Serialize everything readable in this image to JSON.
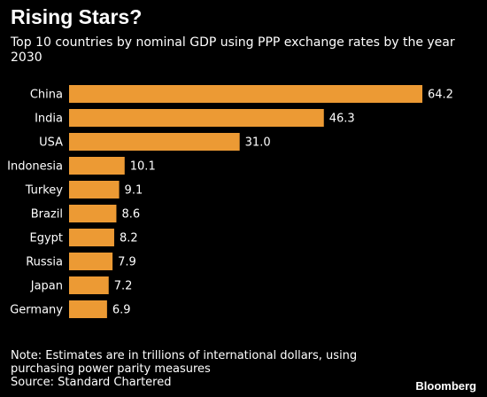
{
  "header": {
    "title": "Rising Stars?",
    "subtitle": "Top 10 countries by nominal GDP using PPP exchange rates by the year 2030"
  },
  "footer": {
    "note": "Note: Estimates are in trillions of international dollars, using purchasing power parity measures",
    "source": "Source: Standard Chartered",
    "brand": "Bloomberg"
  },
  "colors": {
    "bar": "#ec9a34",
    "background": "#000000",
    "text": "#ffffff"
  },
  "chart_data": {
    "type": "bar",
    "orientation": "horizontal",
    "categories": [
      "China",
      "India",
      "USA",
      "Indonesia",
      "Turkey",
      "Brazil",
      "Egypt",
      "Russia",
      "Japan",
      "Germany"
    ],
    "values": [
      64.2,
      46.3,
      31.0,
      10.1,
      9.1,
      8.6,
      8.2,
      7.9,
      7.2,
      6.9
    ],
    "value_labels": [
      "64.2",
      "46.3",
      "31.0",
      "10.1",
      "9.1",
      "8.6",
      "8.2",
      "7.9",
      "7.2",
      "6.9"
    ],
    "title": "",
    "xlabel": "",
    "ylabel": "",
    "xlim": [
      0,
      64.2
    ],
    "grid": false,
    "legend": "none"
  }
}
